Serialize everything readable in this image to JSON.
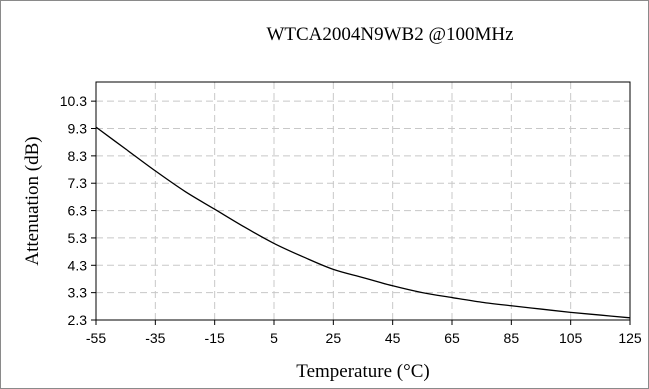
{
  "chart_data": {
    "type": "line",
    "title": "WTCA2004N9WB2  @100MHz",
    "xlabel": "Temperature (°C)",
    "ylabel": "Attenuation (dB)",
    "xlim": [
      -55,
      125
    ],
    "ylim": [
      2.3,
      10.3
    ],
    "x_ticks": [
      "-55",
      "-35",
      "-15",
      "5",
      "25",
      "45",
      "65",
      "85",
      "105",
      "125"
    ],
    "y_ticks": [
      "10.3",
      "9.3",
      "8.3",
      "7.3",
      "6.3",
      "5.3",
      "4.3",
      "3.3",
      "2.3"
    ],
    "grid": true,
    "grid_style": "dashed",
    "colors": {
      "line": "#000000",
      "grid": "#c8c8c8",
      "axes": "#000000"
    },
    "series": [
      {
        "x": [
          -55,
          -45,
          -35,
          -25,
          -15,
          -5,
          5,
          15,
          25,
          35,
          45,
          55,
          65,
          75,
          85,
          95,
          105,
          115,
          125
        ],
        "values": [
          9.35,
          8.55,
          7.75,
          7.0,
          6.35,
          5.7,
          5.1,
          4.6,
          4.15,
          3.85,
          3.55,
          3.3,
          3.12,
          2.95,
          2.82,
          2.7,
          2.58,
          2.48,
          2.38
        ]
      }
    ]
  }
}
